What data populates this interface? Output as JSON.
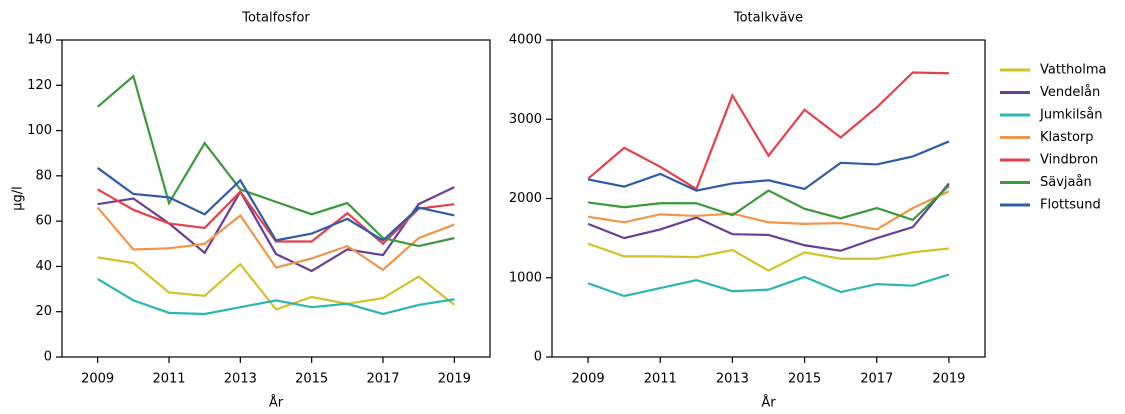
{
  "chart_data": [
    {
      "type": "line",
      "title": "Totalfosfor",
      "y_label": "µg/l",
      "x_label": "År",
      "x": [
        2009,
        2010,
        2011,
        2012,
        2013,
        2014,
        2015,
        2016,
        2017,
        2018,
        2019
      ],
      "xlim": [
        2008,
        2020
      ],
      "xticks": [
        2009,
        2011,
        2013,
        2015,
        2017,
        2019
      ],
      "ylim": [
        0,
        140
      ],
      "yticks": [
        0,
        20,
        40,
        60,
        80,
        100,
        120,
        140
      ],
      "series": [
        {
          "name": "Vattholma",
          "color": "#d4c12a",
          "values": [
            44,
            41.5,
            28.5,
            27,
            41,
            21,
            26.5,
            23.5,
            26,
            35.5,
            23
          ]
        },
        {
          "name": "Vendelån",
          "color": "#6a3d9a",
          "values": [
            67.5,
            70,
            59,
            46,
            73,
            45.5,
            38,
            47.5,
            45,
            67.5,
            75
          ]
        },
        {
          "name": "Jumkilsån",
          "color": "#2bb5b8",
          "values": [
            34.5,
            25,
            19.5,
            19,
            22,
            25,
            22,
            23.5,
            19,
            23,
            25.5
          ]
        },
        {
          "name": "Klastorp",
          "color": "#f0954a",
          "values": [
            66,
            47.5,
            48,
            50,
            62.5,
            39.5,
            43.5,
            49,
            38.5,
            52.5,
            58.5
          ]
        },
        {
          "name": "Vindbron",
          "color": "#e8404a",
          "values": [
            74,
            65,
            59,
            57,
            73,
            51,
            51,
            63.5,
            50,
            65.5,
            67.5
          ]
        },
        {
          "name": "Sävjaån",
          "color": "#3a9a3a",
          "values": [
            110.5,
            124,
            68,
            94.5,
            74,
            68.5,
            63,
            68,
            52.5,
            49,
            52.5
          ]
        },
        {
          "name": "Flottsund",
          "color": "#2e5caa",
          "values": [
            83.5,
            72,
            70.5,
            63,
            78,
            51.5,
            54.5,
            61,
            51.5,
            66,
            62.5
          ]
        }
      ]
    },
    {
      "type": "line",
      "title": "Totalkväve",
      "x_label": "År",
      "x": [
        2009,
        2010,
        2011,
        2012,
        2013,
        2014,
        2015,
        2016,
        2017,
        2018,
        2019
      ],
      "xlim": [
        2008,
        2020
      ],
      "xticks": [
        2009,
        2011,
        2013,
        2015,
        2017,
        2019
      ],
      "ylim": [
        0,
        4000
      ],
      "yticks": [
        0,
        1000,
        2000,
        3000,
        4000
      ],
      "series": [
        {
          "values": [
            1430,
            1270,
            1270,
            1260,
            1350,
            1090,
            1320,
            1240,
            1240,
            1320,
            1370
          ]
        },
        {
          "values": [
            1680,
            1500,
            1610,
            1760,
            1550,
            1540,
            1410,
            1340,
            1500,
            1640,
            2190
          ]
        },
        {
          "values": [
            930,
            770,
            870,
            970,
            830,
            850,
            1010,
            820,
            920,
            900,
            1040
          ]
        },
        {
          "values": [
            1770,
            1700,
            1800,
            1780,
            1810,
            1700,
            1680,
            1690,
            1610,
            1880,
            2090
          ]
        },
        {
          "values": [
            2250,
            2640,
            2400,
            2120,
            3300,
            2540,
            3120,
            2770,
            3150,
            3590,
            3580
          ]
        },
        {
          "values": [
            1950,
            1890,
            1940,
            1940,
            1790,
            2100,
            1870,
            1750,
            1880,
            1730,
            2160
          ]
        },
        {
          "values": [
            2240,
            2150,
            2310,
            2100,
            2190,
            2230,
            2120,
            2450,
            2430,
            2530,
            2720
          ]
        }
      ]
    }
  ]
}
